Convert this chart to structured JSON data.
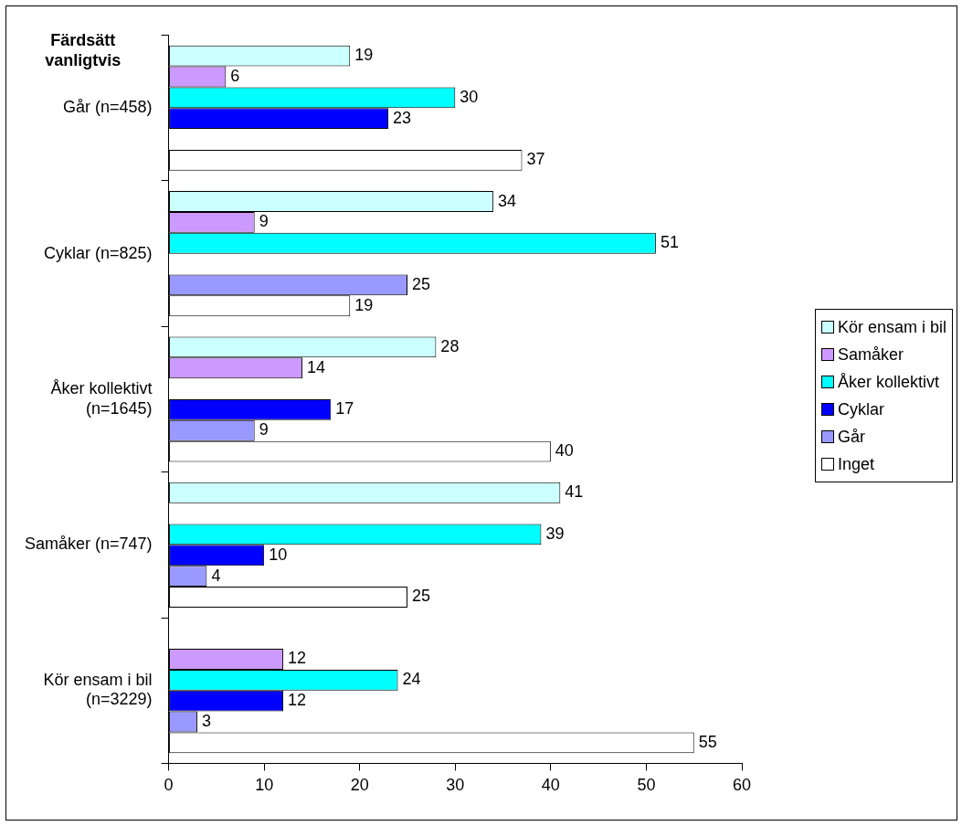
{
  "chart_data": {
    "type": "bar",
    "orientation": "horizontal",
    "ylabel": "Färdsätt vanligtvis",
    "categories": [
      "Går (n=458)",
      "Cyklar (n=825)",
      "Åker kollektivt (n=1645)",
      "Samåker (n=747)",
      "Kör ensam i bil (n=3229)"
    ],
    "series": [
      {
        "name": "Kör ensam i bil",
        "color": "#ccffff",
        "values": [
          19,
          34,
          28,
          41,
          null
        ]
      },
      {
        "name": "Samåker",
        "color": "#cc99ff",
        "values": [
          6,
          9,
          14,
          null,
          12
        ]
      },
      {
        "name": "Åker kollektivt",
        "color": "#00ffff",
        "values": [
          30,
          51,
          null,
          39,
          24
        ]
      },
      {
        "name": "Cyklar",
        "color": "#0000ff",
        "values": [
          23,
          null,
          17,
          10,
          12
        ]
      },
      {
        "name": "Går",
        "color": "#9999ff",
        "values": [
          null,
          25,
          9,
          4,
          3
        ]
      },
      {
        "name": "Inget",
        "color": "#ffffff",
        "values": [
          37,
          19,
          40,
          25,
          55
        ]
      }
    ],
    "xlim": [
      0,
      60
    ],
    "xticks": [
      0,
      10,
      20,
      30,
      40,
      50,
      60
    ],
    "grid": false,
    "legend": "right",
    "data_labels": true
  }
}
